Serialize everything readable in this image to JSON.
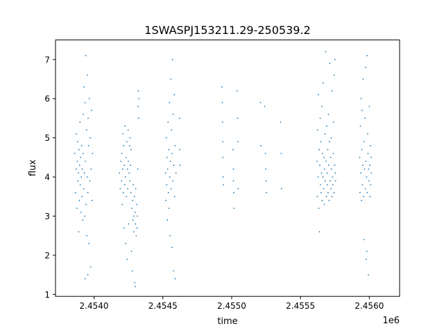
{
  "chart_data": {
    "type": "scatter",
    "title": "1SWASPJ153211.29-250539.2",
    "xlabel": "time",
    "ylabel": "flux",
    "x_offset_label": "1e6",
    "xlim": [
      2453720,
      2456220
    ],
    "ylim": [
      0.95,
      7.5
    ],
    "x_ticks": [
      {
        "value": 2454000,
        "label": "2.4540"
      },
      {
        "value": 2454500,
        "label": "2.4545"
      },
      {
        "value": 2455000,
        "label": "2.4550"
      },
      {
        "value": 2455500,
        "label": "2.4555"
      },
      {
        "value": 2456000,
        "label": "2.4560"
      }
    ],
    "y_ticks": [
      {
        "value": 1,
        "label": "1"
      },
      {
        "value": 2,
        "label": "2"
      },
      {
        "value": 3,
        "label": "3"
      },
      {
        "value": 4,
        "label": "4"
      },
      {
        "value": 5,
        "label": "5"
      },
      {
        "value": 6,
        "label": "6"
      },
      {
        "value": 7,
        "label": "7"
      }
    ],
    "grid": false,
    "marker_color": "#1f77b4",
    "series": [
      {
        "points": [
          [
            2453860,
            4.6
          ],
          [
            2453865,
            3.6
          ],
          [
            2453870,
            4.2
          ],
          [
            2453872,
            5.1
          ],
          [
            2453875,
            3.2
          ],
          [
            2453878,
            4.4
          ],
          [
            2453880,
            4.9
          ],
          [
            2453883,
            3.9
          ],
          [
            2453886,
            4.1
          ],
          [
            2453888,
            2.6
          ],
          [
            2453890,
            4.7
          ],
          [
            2453893,
            3.4
          ],
          [
            2453895,
            4.3
          ],
          [
            2453898,
            5.4
          ],
          [
            2453900,
            3.8
          ],
          [
            2453903,
            4.5
          ],
          [
            2453905,
            3.1
          ],
          [
            2453908,
            4.0
          ],
          [
            2453910,
            4.8
          ],
          [
            2453913,
            3.5
          ],
          [
            2453915,
            4.2
          ],
          [
            2453918,
            2.9
          ],
          [
            2453920,
            4.6
          ],
          [
            2453922,
            5.6
          ],
          [
            2453925,
            3.7
          ],
          [
            2453928,
            6.3
          ],
          [
            2453930,
            4.1
          ],
          [
            2453932,
            3.0
          ],
          [
            2453935,
            5.9
          ],
          [
            2453937,
            4.4
          ],
          [
            2453940,
            7.1
          ],
          [
            2453942,
            3.3
          ],
          [
            2453945,
            5.2
          ],
          [
            2453947,
            2.5
          ],
          [
            2453950,
            4.0
          ],
          [
            2453952,
            6.6
          ],
          [
            2453955,
            3.6
          ],
          [
            2453957,
            5.5
          ],
          [
            2453960,
            4.8
          ],
          [
            2453963,
            2.3
          ],
          [
            2453966,
            6.0
          ],
          [
            2453969,
            3.9
          ],
          [
            2453972,
            5.0
          ],
          [
            2453975,
            1.7
          ],
          [
            2453978,
            4.2
          ],
          [
            2453982,
            5.7
          ],
          [
            2453985,
            3.4
          ],
          [
            2453990,
            4.6
          ],
          [
            2453935,
            1.4
          ],
          [
            2453955,
            1.5
          ],
          [
            2454185,
            4.1
          ],
          [
            2454190,
            3.7
          ],
          [
            2454195,
            4.4
          ],
          [
            2454200,
            3.9
          ],
          [
            2454203,
            4.6
          ],
          [
            2454205,
            3.3
          ],
          [
            2454208,
            4.2
          ],
          [
            2454210,
            5.1
          ],
          [
            2454213,
            3.6
          ],
          [
            2454215,
            4.8
          ],
          [
            2454218,
            2.7
          ],
          [
            2454220,
            4.3
          ],
          [
            2454222,
            3.8
          ],
          [
            2454225,
            5.3
          ],
          [
            2454228,
            4.0
          ],
          [
            2454230,
            2.3
          ],
          [
            2454232,
            4.5
          ],
          [
            2454235,
            3.5
          ],
          [
            2454238,
            4.9
          ],
          [
            2454240,
            1.9
          ],
          [
            2454242,
            4.2
          ],
          [
            2454245,
            3.7
          ],
          [
            2454248,
            5.2
          ],
          [
            2454250,
            4.4
          ],
          [
            2454252,
            2.8
          ],
          [
            2454255,
            4.1
          ],
          [
            2454258,
            4.8
          ],
          [
            2454260,
            3.9
          ],
          [
            2454262,
            5.0
          ],
          [
            2454265,
            4.3
          ],
          [
            2454268,
            3.6
          ],
          [
            2454270,
            4.7
          ],
          [
            2454272,
            2.1
          ],
          [
            2454275,
            3.2
          ],
          [
            2454278,
            1.6
          ],
          [
            2454280,
            3.4
          ],
          [
            2454283,
            2.9
          ],
          [
            2454285,
            3.8
          ],
          [
            2454288,
            3.0
          ],
          [
            2454290,
            2.6
          ],
          [
            2454293,
            3.5
          ],
          [
            2454295,
            1.3
          ],
          [
            2454298,
            3.1
          ],
          [
            2454300,
            2.8
          ],
          [
            2454303,
            3.7
          ],
          [
            2454306,
            2.5
          ],
          [
            2454310,
            3.3
          ],
          [
            2454313,
            2.7
          ],
          [
            2454315,
            3.0
          ],
          [
            2454318,
            4.2
          ],
          [
            2454320,
            5.8
          ],
          [
            2454322,
            6.2
          ],
          [
            2454324,
            5.5
          ],
          [
            2454326,
            6.0
          ],
          [
            2454300,
            1.2
          ],
          [
            2454520,
            4.1
          ],
          [
            2454522,
            3.4
          ],
          [
            2454525,
            5.0
          ],
          [
            2454528,
            3.8
          ],
          [
            2454530,
            4.5
          ],
          [
            2454533,
            2.9
          ],
          [
            2454535,
            4.2
          ],
          [
            2454538,
            5.4
          ],
          [
            2454540,
            3.6
          ],
          [
            2454543,
            4.7
          ],
          [
            2454545,
            3.2
          ],
          [
            2454548,
            5.9
          ],
          [
            2454550,
            4.0
          ],
          [
            2454553,
            2.5
          ],
          [
            2454555,
            4.4
          ],
          [
            2454558,
            6.5
          ],
          [
            2454560,
            3.7
          ],
          [
            2454563,
            5.2
          ],
          [
            2454565,
            2.2
          ],
          [
            2454568,
            4.6
          ],
          [
            2454570,
            7.0
          ],
          [
            2454573,
            3.9
          ],
          [
            2454575,
            5.6
          ],
          [
            2454578,
            1.6
          ],
          [
            2454580,
            4.3
          ],
          [
            2454583,
            6.1
          ],
          [
            2454585,
            3.5
          ],
          [
            2454588,
            4.8
          ],
          [
            2454590,
            1.4
          ],
          [
            2454595,
            4.1
          ],
          [
            2454620,
            5.5
          ],
          [
            2454622,
            4.7
          ],
          [
            2454625,
            4.3
          ],
          [
            2454930,
            6.3
          ],
          [
            2454932,
            5.9
          ],
          [
            2454933,
            5.4
          ],
          [
            2454935,
            4.9
          ],
          [
            2454936,
            4.5
          ],
          [
            2454938,
            4.0
          ],
          [
            2454940,
            3.8
          ],
          [
            2455010,
            4.7
          ],
          [
            2455012,
            4.2
          ],
          [
            2455013,
            3.9
          ],
          [
            2455015,
            3.6
          ],
          [
            2455016,
            3.2
          ],
          [
            2455040,
            6.2
          ],
          [
            2455042,
            5.5
          ],
          [
            2455045,
            4.9
          ],
          [
            2455047,
            3.7
          ],
          [
            2455210,
            5.9
          ],
          [
            2455212,
            4.8
          ],
          [
            2455240,
            5.8
          ],
          [
            2455245,
            4.6
          ],
          [
            2455248,
            4.2
          ],
          [
            2455250,
            3.9
          ],
          [
            2455252,
            3.6
          ],
          [
            2455355,
            5.4
          ],
          [
            2455360,
            4.6
          ],
          [
            2455362,
            3.7
          ],
          [
            2455620,
            4.4
          ],
          [
            2455622,
            3.5
          ],
          [
            2455625,
            5.2
          ],
          [
            2455628,
            4.0
          ],
          [
            2455630,
            6.1
          ],
          [
            2455633,
            3.2
          ],
          [
            2455635,
            4.7
          ],
          [
            2455638,
            2.6
          ],
          [
            2455640,
            4.3
          ],
          [
            2455643,
            5.5
          ],
          [
            2455645,
            3.8
          ],
          [
            2455648,
            4.9
          ],
          [
            2455650,
            3.6
          ],
          [
            2455653,
            4.1
          ],
          [
            2455655,
            5.8
          ],
          [
            2455658,
            3.4
          ],
          [
            2455660,
            4.6
          ],
          [
            2455663,
            4.0
          ],
          [
            2455665,
            6.4
          ],
          [
            2455668,
            3.7
          ],
          [
            2455670,
            4.5
          ],
          [
            2455673,
            3.3
          ],
          [
            2455675,
            4.2
          ],
          [
            2455678,
            5.1
          ],
          [
            2455680,
            3.9
          ],
          [
            2455683,
            7.2
          ],
          [
            2455685,
            4.4
          ],
          [
            2455688,
            3.5
          ],
          [
            2455690,
            5.3
          ],
          [
            2455693,
            4.1
          ],
          [
            2455695,
            3.8
          ],
          [
            2455698,
            4.7
          ],
          [
            2455700,
            3.6
          ],
          [
            2455703,
            5.6
          ],
          [
            2455705,
            4.3
          ],
          [
            2455708,
            3.4
          ],
          [
            2455710,
            4.9
          ],
          [
            2455713,
            6.9
          ],
          [
            2455715,
            3.9
          ],
          [
            2455718,
            4.5
          ],
          [
            2455720,
            3.7
          ],
          [
            2455723,
            5.0
          ],
          [
            2455725,
            4.2
          ],
          [
            2455728,
            3.5
          ],
          [
            2455730,
            6.2
          ],
          [
            2455733,
            4.0
          ],
          [
            2455735,
            3.8
          ],
          [
            2455738,
            4.6
          ],
          [
            2455740,
            5.4
          ],
          [
            2455743,
            3.6
          ],
          [
            2455745,
            6.6
          ],
          [
            2455748,
            4.3
          ],
          [
            2455750,
            7.0
          ],
          [
            2455753,
            4.1
          ],
          [
            2455755,
            3.9
          ],
          [
            2455930,
            4.5
          ],
          [
            2455932,
            3.6
          ],
          [
            2455935,
            5.3
          ],
          [
            2455938,
            4.1
          ],
          [
            2455940,
            6.0
          ],
          [
            2455943,
            3.4
          ],
          [
            2455945,
            4.7
          ],
          [
            2455948,
            5.7
          ],
          [
            2455950,
            3.8
          ],
          [
            2455953,
            4.3
          ],
          [
            2455955,
            6.5
          ],
          [
            2455958,
            3.5
          ],
          [
            2455960,
            4.9
          ],
          [
            2455963,
            2.4
          ],
          [
            2455965,
            4.2
          ],
          [
            2455968,
            5.5
          ],
          [
            2455970,
            3.7
          ],
          [
            2455973,
            6.8
          ],
          [
            2455975,
            4.4
          ],
          [
            2455978,
            1.9
          ],
          [
            2455980,
            4.0
          ],
          [
            2455983,
            7.1
          ],
          [
            2455985,
            3.6
          ],
          [
            2455988,
            5.1
          ],
          [
            2455990,
            4.6
          ],
          [
            2455993,
            1.5
          ],
          [
            2455995,
            4.2
          ],
          [
            2455998,
            3.9
          ],
          [
            2456000,
            5.8
          ],
          [
            2456003,
            4.3
          ],
          [
            2456005,
            3.5
          ],
          [
            2456008,
            4.8
          ],
          [
            2456010,
            3.8
          ],
          [
            2456013,
            4.5
          ],
          [
            2456015,
            4.1
          ],
          [
            2455982,
            2.1
          ]
        ]
      }
    ]
  }
}
